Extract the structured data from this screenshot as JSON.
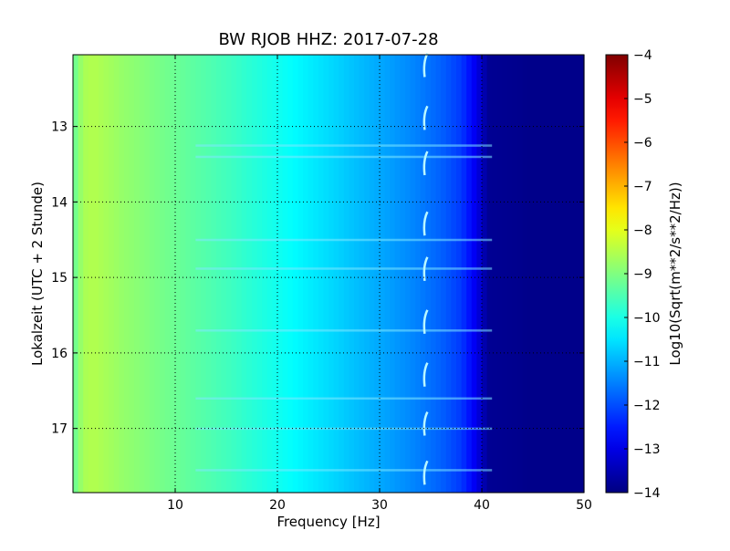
{
  "chart_data": {
    "type": "heatmap",
    "title": "BW RJOB HHZ: 2017-07-28",
    "xlabel": "Frequency [Hz]",
    "ylabel": "Lokalzeit (UTC + 2 Stunde)",
    "xlim": [
      0,
      50
    ],
    "ylim": [
      12.05,
      17.85
    ],
    "y_inverted": true,
    "x_ticks": [
      10,
      20,
      30,
      40,
      50
    ],
    "y_ticks": [
      13,
      14,
      15,
      16,
      17
    ],
    "grid": true,
    "colormap": "jet",
    "colorbar": {
      "label": "Log10(Sqrt(m**2/s**2/Hz))",
      "range": [
        -14,
        -4
      ],
      "ticks": [
        -4,
        -5,
        -6,
        -7,
        -8,
        -9,
        -10,
        -11,
        -12,
        -13,
        -14
      ]
    },
    "spectrum_profile": {
      "frequency_hz": [
        0,
        1,
        2,
        5,
        10,
        15,
        20,
        25,
        30,
        33,
        36,
        38,
        39,
        40,
        40.5,
        45,
        50
      ],
      "log10_amplitude": [
        -9.3,
        -8.6,
        -8.5,
        -8.8,
        -9.2,
        -9.6,
        -10.1,
        -10.6,
        -11.1,
        -11.4,
        -11.8,
        -12.2,
        -12.7,
        -13.3,
        -13.8,
        -13.9,
        -13.9
      ]
    },
    "bright_bands_hours": [
      13.25,
      13.4,
      14.5,
      14.88,
      15.7,
      16.6,
      17.0,
      17.55
    ],
    "spike_events_hours": [
      12.2,
      12.9,
      13.5,
      14.3,
      14.9,
      15.6,
      16.3,
      16.95,
      17.6
    ],
    "spike_frequency_hz": 34.5
  }
}
